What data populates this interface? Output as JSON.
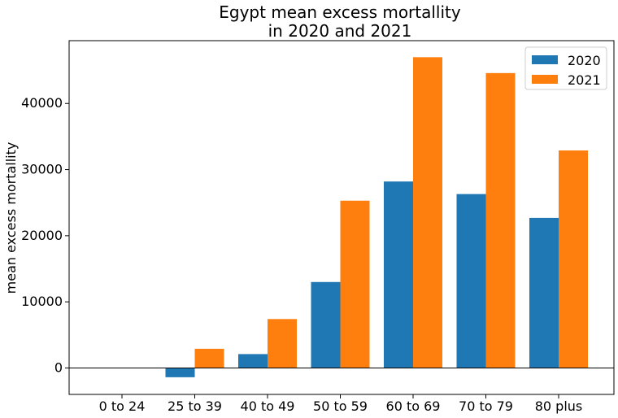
{
  "chart_data": {
    "type": "bar",
    "title_line1": "Egypt mean excess mortallity",
    "title_line2": "in 2020 and 2021",
    "xlabel": "",
    "ylabel": "mean excess mortallity",
    "categories": [
      "0 to 24",
      "25 to 39",
      "40 to 49",
      "50 to 59",
      "60 to 69",
      "70 to 79",
      "80 plus"
    ],
    "series": [
      {
        "name": "2020",
        "color": "#1f77b4",
        "values": [
          0,
          -1400,
          2100,
          13000,
          28200,
          26300,
          22700
        ]
      },
      {
        "name": "2021",
        "color": "#ff7f0e",
        "values": [
          0,
          2900,
          7400,
          25300,
          47000,
          44600,
          32900
        ]
      }
    ],
    "ylim": [
      -4000,
      49500
    ],
    "yticks": [
      0,
      10000,
      20000,
      30000,
      40000
    ],
    "zero_line": true,
    "grid": false,
    "legend_position": "top-right"
  }
}
